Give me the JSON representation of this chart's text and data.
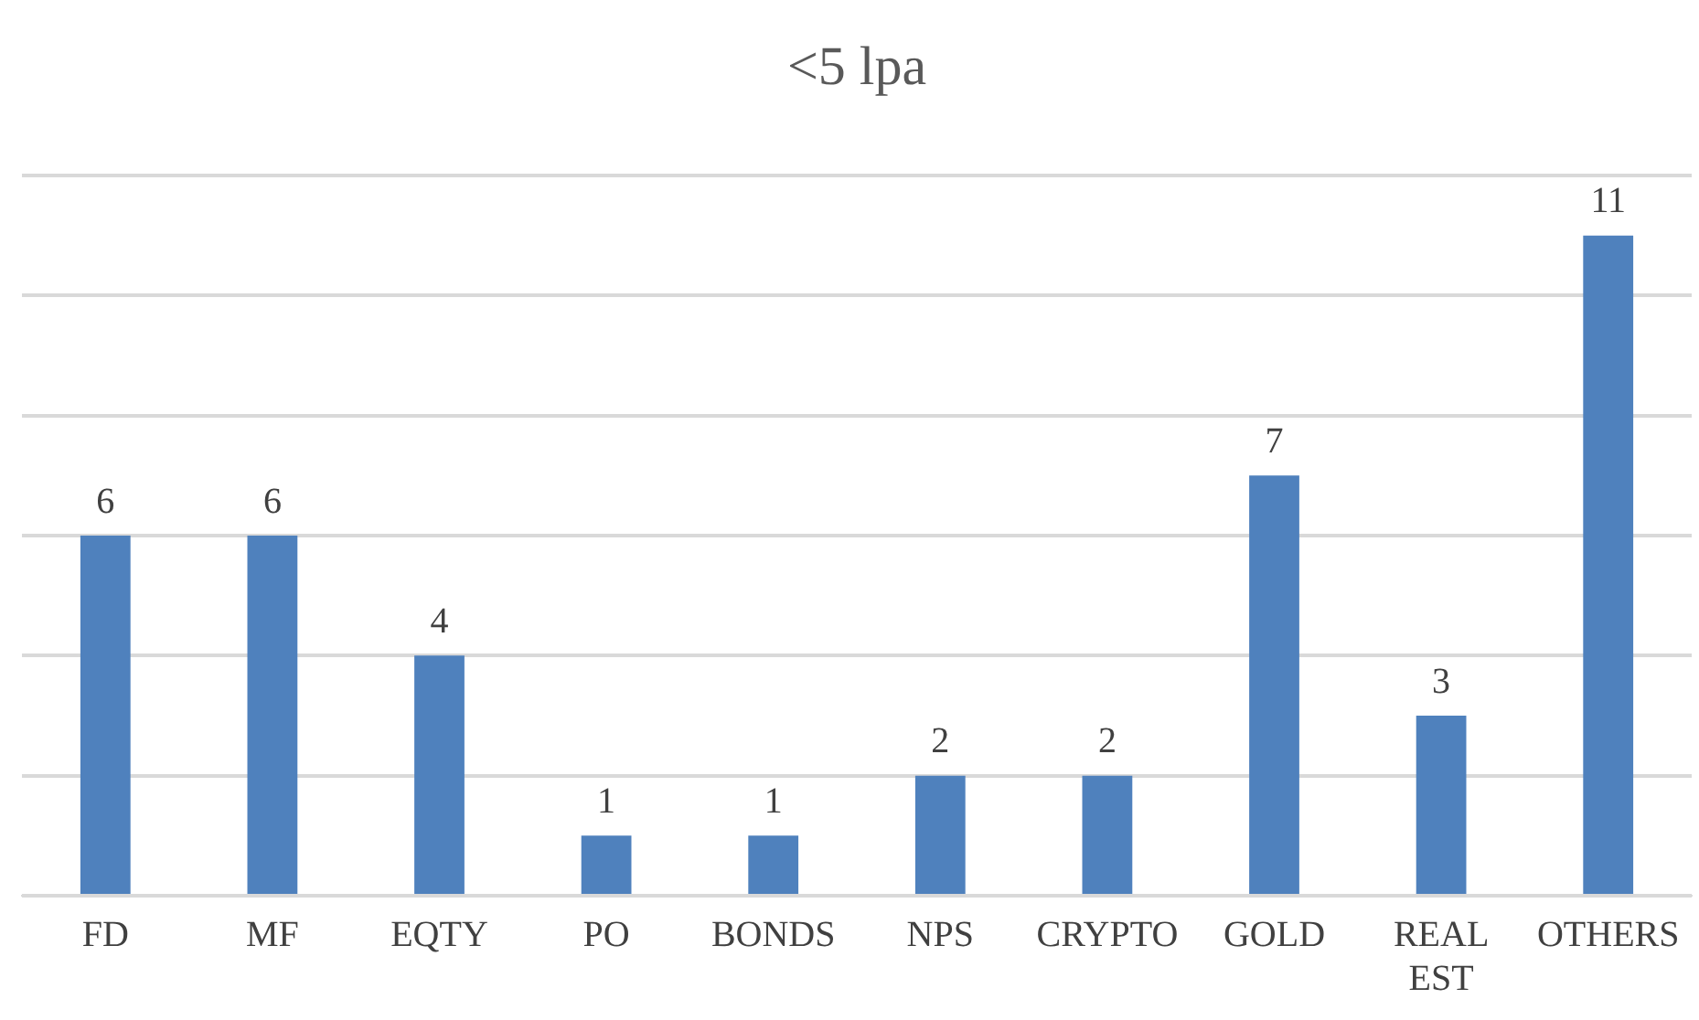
{
  "chart_data": {
    "type": "bar",
    "title": "<5 lpa",
    "categories": [
      "FD",
      "MF",
      "EQTY",
      "PO",
      "BONDS",
      "NPS",
      "CRYPTO",
      "GOLD",
      "REAL EST",
      "OTHERS"
    ],
    "values": [
      6,
      6,
      4,
      1,
      1,
      2,
      2,
      7,
      3,
      11
    ],
    "color": "#4f81bd",
    "ylim": [
      0,
      12
    ],
    "yticks": [
      {
        "value": 0,
        "label": null
      },
      {
        "value": 2,
        "label": null
      },
      {
        "value": 4,
        "label": null
      },
      {
        "value": 6,
        "label": null
      },
      {
        "value": 8,
        "label": null
      },
      {
        "value": 10,
        "label": null
      },
      {
        "value": 12,
        "label": null
      }
    ],
    "grid": "y",
    "tick_labels": "x",
    "data_labels": true
  }
}
